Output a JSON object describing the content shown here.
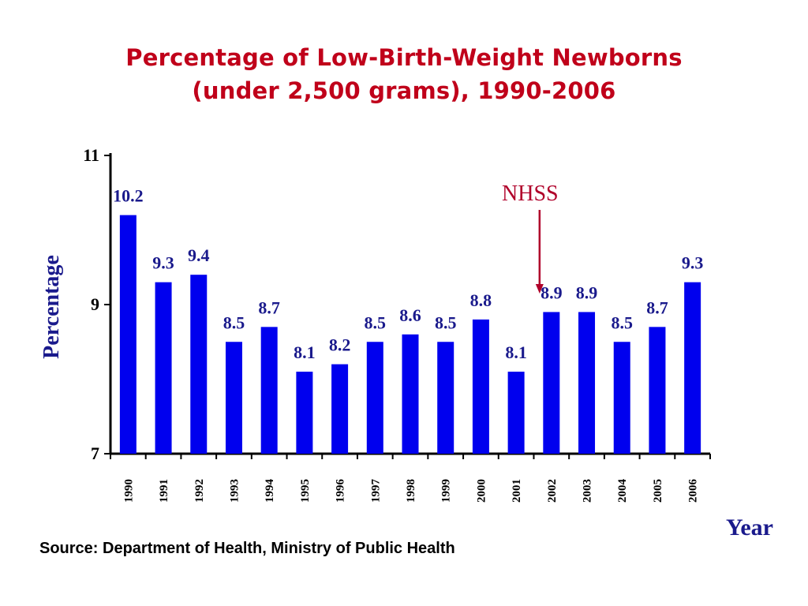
{
  "chart_data": {
    "type": "bar",
    "title": [
      "Percentage of Low-Birth-Weight Newborns",
      "(under 2,500 grams), 1990-2006"
    ],
    "xlabel": "Year",
    "ylabel": "Percentage",
    "ylim": [
      7,
      11
    ],
    "yticks": [
      "7",
      "9",
      "11"
    ],
    "categories": [
      "1990",
      "1991",
      "1992",
      "1993",
      "1994",
      "1995",
      "1996",
      "1997",
      "1998",
      "1999",
      "2000",
      "2001",
      "2002",
      "2003",
      "2004",
      "2005",
      "2006"
    ],
    "values": [
      10.2,
      9.3,
      9.4,
      8.5,
      8.7,
      8.1,
      8.2,
      8.5,
      8.6,
      8.5,
      8.8,
      8.1,
      8.9,
      8.9,
      8.5,
      8.7,
      9.3
    ],
    "value_labels": [
      "10.2",
      "9.3",
      "9.4",
      "8.5",
      "8.7",
      "8.1",
      "8.2",
      "8.5",
      "8.6",
      "8.5",
      "8.8",
      "8.1",
      "8.9",
      "8.9",
      "8.5",
      "8.7",
      "9.3"
    ],
    "bar_color": "#0000ee",
    "label_color": "#1a1a8c",
    "annotation": {
      "text": "NHSS",
      "year": "2002",
      "color": "#b0002a"
    },
    "grid": false,
    "legend": "none"
  },
  "source": "Source: Department of Health, Ministry of Public Health"
}
